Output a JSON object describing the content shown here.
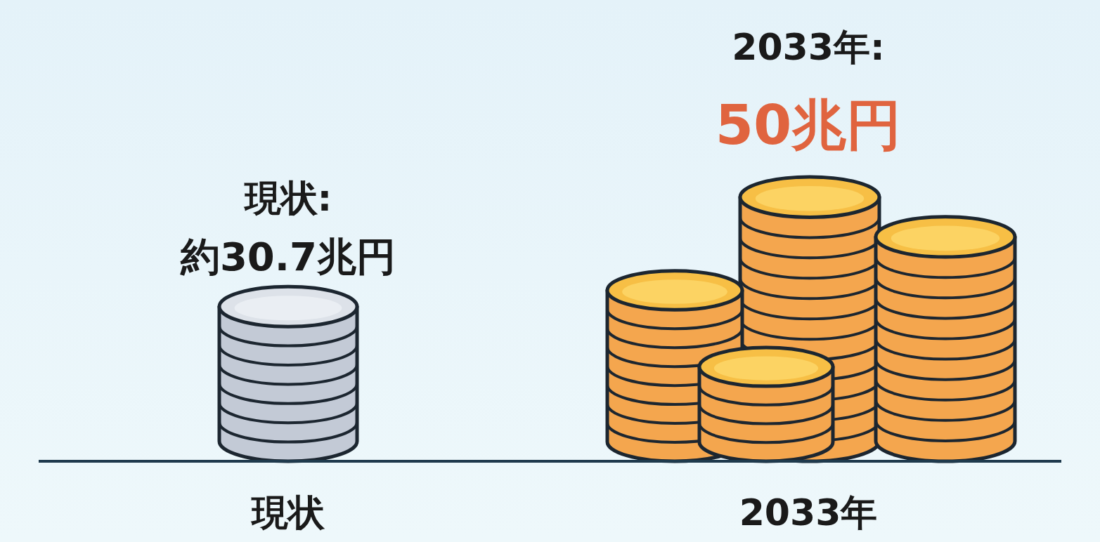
{
  "chart_data": {
    "type": "pictogram",
    "categories": [
      "現状",
      "2033年"
    ],
    "annotations": [
      "現状:",
      "2033年:"
    ],
    "values": [
      30.7,
      50
    ],
    "value_labels": [
      "約30.7兆円",
      "50兆円"
    ],
    "colors": [
      "#c3cad6",
      "#f4a64e"
    ],
    "ylim": [
      0,
      50
    ],
    "data_labels": true,
    "tick_labels": "x"
  }
}
